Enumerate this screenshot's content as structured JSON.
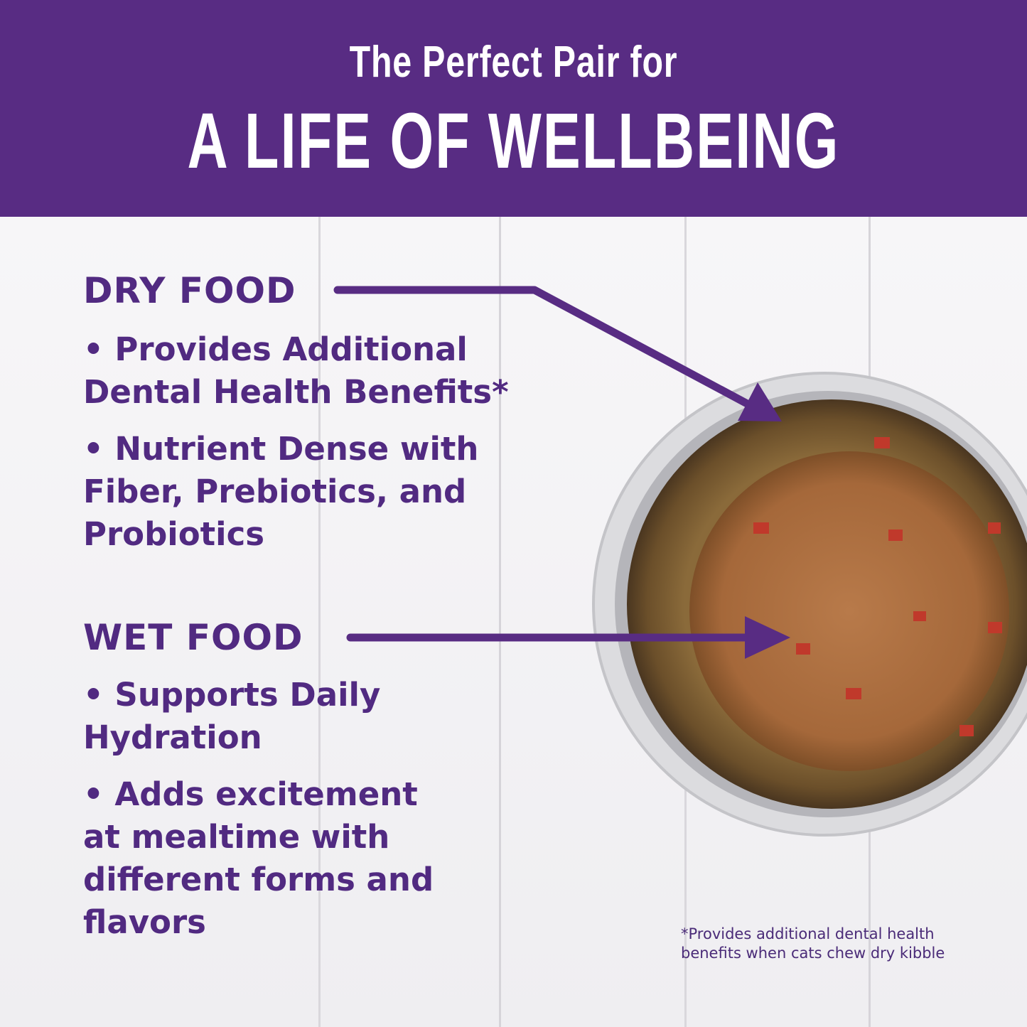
{
  "banner": {
    "subtitle": "The Perfect Pair for",
    "title": "A LIFE OF WELLBEING"
  },
  "dry": {
    "heading": "DRY FOOD",
    "bullets": [
      "• Provides Additional Dental Health Benefits*",
      "• Nutrient Dense with Fiber, Prebiotics, and Probiotics"
    ]
  },
  "wet": {
    "heading": "WET FOOD",
    "bullets": [
      "• Supports Daily Hydration",
      "• Adds excitement at mealtime with different forms and flavors"
    ]
  },
  "footnote": "*Provides additional dental health benefits when cats chew dry kibble",
  "colors": {
    "brand_purple": "#582c83",
    "text_purple": "#512a81"
  }
}
